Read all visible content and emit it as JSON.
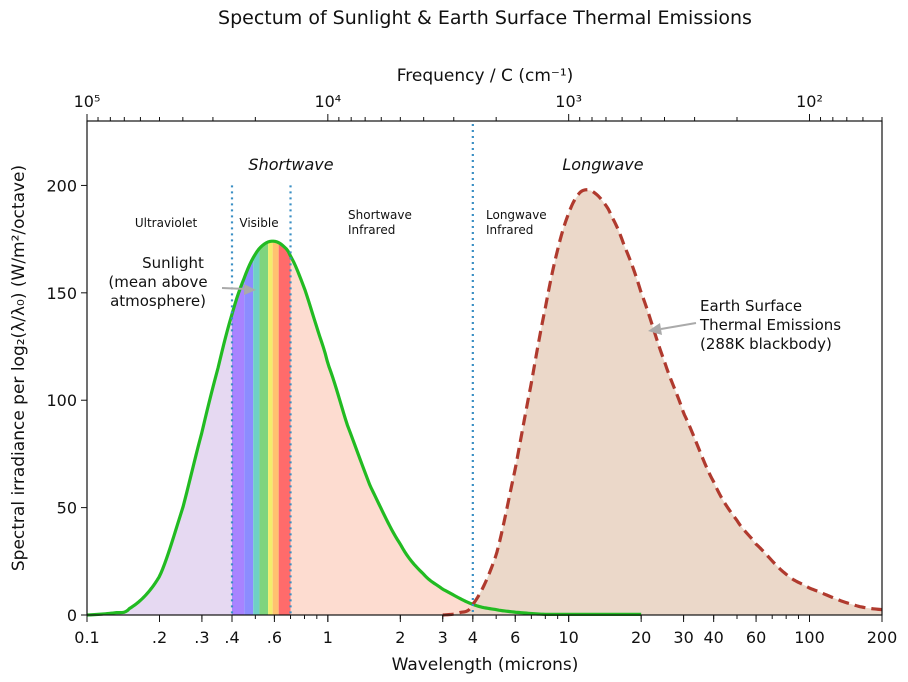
{
  "chart_data": {
    "type": "area",
    "title": "Spectum of Sunlight & Earth Surface Thermal Emissions",
    "xlabel": "Wavelength   (microns)",
    "ylabel": "Spectral irradiance per log₂(λ/λ₀)   (W/m²/octave)",
    "top_xlabel": "Frequency / C   (cm⁻¹)",
    "x_scale": "log",
    "xlim": [
      0.1,
      200
    ],
    "ylim": [
      0,
      230
    ],
    "x_tick_labels": [
      {
        "x": 0.1,
        "label": "0.1"
      },
      {
        "x": 0.2,
        "label": ".2"
      },
      {
        "x": 0.3,
        "label": ".3"
      },
      {
        "x": 0.4,
        "label": ".4"
      },
      {
        "x": 0.6,
        "label": ".6"
      },
      {
        "x": 1,
        "label": "1"
      },
      {
        "x": 2,
        "label": "2"
      },
      {
        "x": 3,
        "label": "3"
      },
      {
        "x": 4,
        "label": "4"
      },
      {
        "x": 6,
        "label": "6"
      },
      {
        "x": 10,
        "label": "10"
      },
      {
        "x": 20,
        "label": "20"
      },
      {
        "x": 30,
        "label": "30"
      },
      {
        "x": 40,
        "label": "40"
      },
      {
        "x": 60,
        "label": "60"
      },
      {
        "x": 100,
        "label": "100"
      },
      {
        "x": 200,
        "label": "200"
      }
    ],
    "y_ticks": [
      0,
      50,
      100,
      150,
      200
    ],
    "top_ticks": [
      {
        "x": 0.1,
        "label": "10⁵"
      },
      {
        "x": 1,
        "label": "10⁴"
      },
      {
        "x": 10,
        "label": "10³"
      },
      {
        "x": 100,
        "label": "10²"
      }
    ],
    "boundaries": [
      0.4,
      0.7,
      4
    ],
    "region_labels": {
      "shortwave": "Shortwave",
      "longwave": "Longwave",
      "ultraviolet": "Ultraviolet",
      "visible": "Visible",
      "sw_ir_1": "Shortwave",
      "sw_ir_2": "Infrared",
      "lw_ir_1": "Longwave",
      "lw_ir_2": "Infrared"
    },
    "series": [
      {
        "name": "Sunlight (mean above atmosphere)",
        "color": "#22bb22",
        "style": "solid",
        "peak": 174,
        "x": [
          0.1,
          0.13,
          0.15,
          0.2,
          0.25,
          0.3,
          0.35,
          0.4,
          0.45,
          0.5,
          0.55,
          0.6,
          0.65,
          0.7,
          0.8,
          0.9,
          1.0,
          1.2,
          1.5,
          2,
          2.5,
          3,
          4,
          5,
          6,
          8
        ],
        "values": [
          0,
          1,
          3,
          18,
          50,
          85,
          115,
          140,
          157,
          168,
          173,
          174,
          172,
          167,
          152,
          134,
          117,
          89,
          60,
          33,
          19,
          12,
          5,
          2.5,
          1.3,
          0.3
        ]
      },
      {
        "name": "Earth Surface Thermal Emissions (288K blackbody)",
        "color": "#b03a2e",
        "style": "dashed",
        "peak": 198,
        "x": [
          3,
          3.5,
          4,
          5,
          6,
          7,
          8,
          9,
          10,
          11,
          12,
          13,
          14,
          15,
          17,
          20,
          25,
          30,
          40,
          50,
          60,
          80,
          100,
          150,
          200
        ],
        "values": [
          0,
          1,
          5,
          28,
          68,
          108,
          143,
          170,
          187,
          196,
          198,
          196,
          192,
          186,
          172,
          150,
          118,
          94,
          62,
          44,
          33,
          19,
          12.5,
          5,
          2.5
        ]
      }
    ],
    "visible_bands": [
      {
        "from": 0.4,
        "to": 0.45,
        "color": "#a883ff"
      },
      {
        "from": 0.45,
        "to": 0.49,
        "color": "#8c8cff"
      },
      {
        "from": 0.49,
        "to": 0.52,
        "color": "#6fd0c5"
      },
      {
        "from": 0.52,
        "to": 0.565,
        "color": "#7ed47e"
      },
      {
        "from": 0.565,
        "to": 0.59,
        "color": "#f2ee6c"
      },
      {
        "from": 0.59,
        "to": 0.625,
        "color": "#ffc270"
      },
      {
        "from": 0.625,
        "to": 0.7,
        "color": "#ff6b6b"
      }
    ],
    "fill_colors": {
      "ultraviolet": "#e6d9f2",
      "shortwave_ir": "#fddcd0",
      "longwave": "#ead6c6"
    },
    "annotations": [
      {
        "lines": [
          "Sunlight",
          "(mean above",
          "atmosphere)"
        ],
        "target_x": 0.55,
        "target_y": 155
      },
      {
        "lines": [
          "Earth Surface",
          "Thermal Emissions",
          "(288K blackbody)"
        ],
        "target_x": 22,
        "target_y": 135
      }
    ]
  }
}
